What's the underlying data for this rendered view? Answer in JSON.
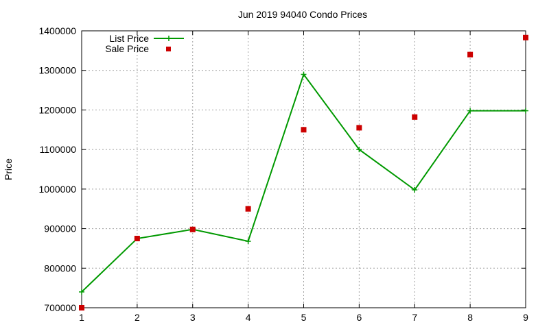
{
  "chart_data": {
    "type": "line",
    "title": "Jun 2019 94040 Condo Prices",
    "xlabel": "",
    "ylabel": "Price",
    "xlim": [
      1,
      9
    ],
    "ylim": [
      700000,
      1400000
    ],
    "x_ticks": [
      1,
      2,
      3,
      4,
      5,
      6,
      7,
      8,
      9
    ],
    "y_ticks": [
      700000,
      800000,
      900000,
      1000000,
      1100000,
      1200000,
      1300000,
      1400000
    ],
    "grid": true,
    "legend_position": "top-left",
    "series": [
      {
        "name": "List Price",
        "style": "line-with-plus-markers",
        "color": "#009900",
        "x": [
          1,
          2,
          3,
          4,
          5,
          6,
          7,
          8,
          9
        ],
        "values": [
          740000,
          875000,
          898000,
          868000,
          1290000,
          1100000,
          998000,
          1198000,
          1198000
        ]
      },
      {
        "name": "Sale Price",
        "style": "square-markers",
        "color": "#cc0000",
        "x": [
          1,
          2,
          3,
          4,
          5,
          6,
          7,
          8,
          9
        ],
        "values": [
          700000,
          875000,
          898000,
          950000,
          1150000,
          1155000,
          1182000,
          1340000,
          1383000
        ]
      }
    ]
  }
}
